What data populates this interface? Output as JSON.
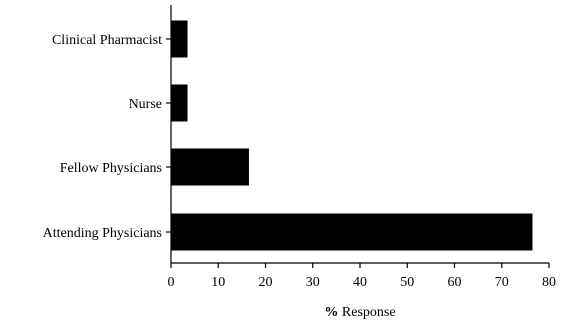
{
  "chart_data": {
    "type": "bar",
    "orientation": "horizontal",
    "categories": [
      "Attending Physicians",
      "Fellow Physicians",
      "Nurse",
      "Clinical Pharmacist"
    ],
    "values": [
      76.5,
      16.5,
      3.5,
      3.5
    ],
    "xlabel_prefix": "%",
    "xlabel_rest": " Response",
    "xlim": [
      0,
      80
    ],
    "xticks": [
      0,
      10,
      20,
      30,
      40,
      50,
      60,
      70,
      80
    ],
    "xtick_labels": [
      "0",
      "10",
      "20",
      "30",
      "40",
      "50",
      "60",
      "70",
      "80"
    ],
    "grid": false,
    "legend": "none",
    "bar_color": "#000000"
  }
}
